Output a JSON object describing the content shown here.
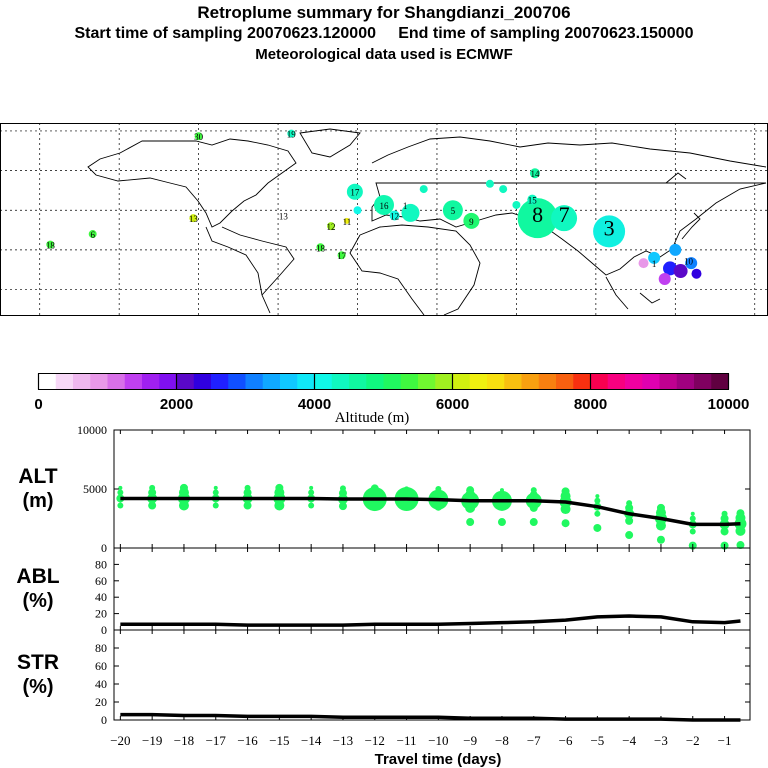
{
  "header": {
    "title": "Retroplume summary for Shangdianzi_200706",
    "sampling": "Start time of sampling 20070623.120000     End time of sampling 20070623.150000",
    "met": "Meteorological data used is ECMWF"
  },
  "colorbar": {
    "label": "Altitude (m)",
    "ticks": [
      "0",
      "2000",
      "4000",
      "6000",
      "8000",
      "10000"
    ],
    "range": [
      0,
      10000
    ],
    "colors": [
      "#ffffff",
      "#f7d8f7",
      "#efb8ef",
      "#e898e8",
      "#d870e8",
      "#c040f0",
      "#a020f0",
      "#8010f0",
      "#5a08c8",
      "#3000e0",
      "#2020ff",
      "#1050ff",
      "#1080ff",
      "#10a8ff",
      "#10c8ff",
      "#10e8f8",
      "#10f8e8",
      "#10f8c0",
      "#10f8a0",
      "#10f880",
      "#20f860",
      "#40f840",
      "#70f830",
      "#a0f020",
      "#d0f010",
      "#f0f010",
      "#f8e010",
      "#f8c010",
      "#f8a010",
      "#f88010",
      "#f86010",
      "#f83010",
      "#f80050",
      "#f80080",
      "#f000a0",
      "#e000b0",
      "#c00090",
      "#a00080",
      "#800060",
      "#600040"
    ]
  },
  "map": {
    "labels": [
      {
        "t": "30",
        "lon": -60,
        "lat": 78
      },
      {
        "t": "19",
        "lon": -25,
        "lat": 79
      },
      {
        "t": "14",
        "lon": 67,
        "lat": 64
      },
      {
        "t": "15",
        "lon": 66,
        "lat": 54
      },
      {
        "t": "17",
        "lon": -1,
        "lat": 57
      },
      {
        "t": "16",
        "lon": 10,
        "lat": 52
      },
      {
        "t": "12",
        "lon": 14,
        "lat": 48
      },
      {
        "t": "1",
        "lon": 18,
        "lat": 52
      },
      {
        "t": "5",
        "lon": 36,
        "lat": 50
      },
      {
        "t": "9",
        "lon": 43,
        "lat": 46
      },
      {
        "t": "8",
        "lon": 68,
        "lat": 47
      },
      {
        "t": "7",
        "lon": 78,
        "lat": 47
      },
      {
        "t": "3",
        "lon": 95,
        "lat": 42
      },
      {
        "t": "13",
        "lon": -62,
        "lat": 47
      },
      {
        "t": "6",
        "lon": -100,
        "lat": 41
      },
      {
        "t": "13",
        "lon": -28,
        "lat": 48
      },
      {
        "t": "12",
        "lon": -10,
        "lat": 44
      },
      {
        "t": "11",
        "lon": -4,
        "lat": 46
      },
      {
        "t": "18",
        "lon": -14,
        "lat": 36
      },
      {
        "t": "17",
        "lon": -6,
        "lat": 33
      },
      {
        "t": "18",
        "lon": -116,
        "lat": 37
      },
      {
        "t": "10",
        "lon": 125,
        "lat": 31
      },
      {
        "t": "1",
        "lon": 112,
        "lat": 30
      }
    ]
  },
  "chart_data": [
    {
      "type": "line",
      "name": "ALT",
      "ylabel_line1": "ALT",
      "ylabel_line2": "(m)",
      "ylim": [
        0,
        10000
      ],
      "yticks": [
        "0",
        "5000",
        "10000"
      ],
      "x": [
        -20,
        -19,
        -18,
        -17,
        -16,
        -15,
        -14,
        -13,
        -12,
        -11,
        -10,
        -9,
        -8,
        -7,
        -6,
        -5,
        -4,
        -3,
        -2,
        -1,
        -0.5
      ],
      "values": [
        4200,
        4200,
        4200,
        4200,
        4200,
        4200,
        4200,
        4150,
        4150,
        4150,
        4100,
        4000,
        4000,
        4000,
        3900,
        3500,
        2900,
        2500,
        2000,
        2000,
        2050
      ]
    },
    {
      "type": "line",
      "name": "ABL",
      "ylabel_line1": "ABL",
      "ylabel_line2": "(%)",
      "ylim": [
        0,
        100
      ],
      "yticks": [
        "0",
        "20",
        "40",
        "60",
        "80"
      ],
      "x": [
        -20,
        -19,
        -18,
        -17,
        -16,
        -15,
        -14,
        -13,
        -12,
        -11,
        -10,
        -9,
        -8,
        -7,
        -6,
        -5,
        -4,
        -3,
        -2,
        -1,
        -0.5
      ],
      "values": [
        7,
        7,
        7,
        7,
        6,
        6,
        6,
        6,
        7,
        7,
        7,
        8,
        9,
        10,
        12,
        16,
        17,
        16,
        10,
        9,
        11
      ]
    },
    {
      "type": "line",
      "name": "STR",
      "ylabel_line1": "STR",
      "ylabel_line2": "(%)",
      "ylim": [
        0,
        100
      ],
      "yticks": [
        "0",
        "20",
        "40",
        "60",
        "80"
      ],
      "xlabel": "Travel time (days)",
      "xticks": [
        "−20",
        "−19",
        "−18",
        "−17",
        "−16",
        "−15",
        "−14",
        "−13",
        "−12",
        "−11",
        "−10",
        "−9",
        "−8",
        "−7",
        "−6",
        "−5",
        "−4",
        "−3",
        "−2",
        "−1"
      ],
      "x": [
        -20,
        -19,
        -18,
        -17,
        -16,
        -15,
        -14,
        -13,
        -12,
        -11,
        -10,
        -9,
        -8,
        -7,
        -6,
        -5,
        -4,
        -3,
        -2,
        -1,
        -0.5
      ],
      "values": [
        6,
        6,
        5,
        5,
        4,
        4,
        4,
        3,
        3,
        3,
        3,
        2,
        2,
        2,
        1,
        1,
        1,
        1,
        0,
        0,
        0
      ]
    }
  ]
}
